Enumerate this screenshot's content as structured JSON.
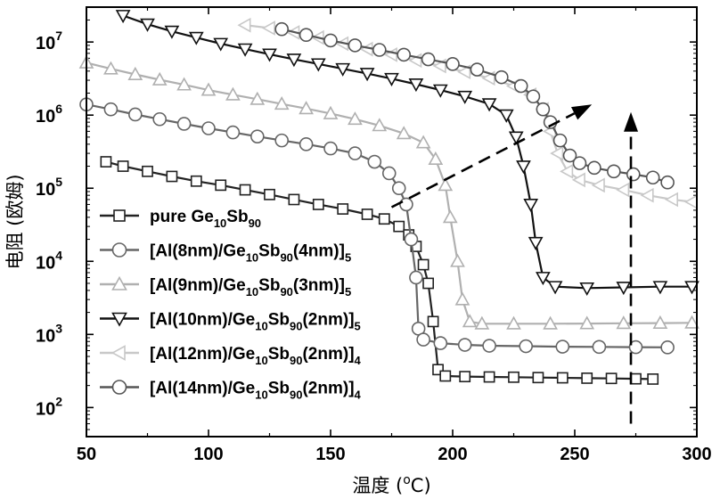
{
  "chart_data": {
    "type": "scatter",
    "xlabel": "温度 (oC)",
    "ylabel": "电阻 (欧姆)",
    "x_ticks": [
      50,
      100,
      150,
      200,
      250,
      300
    ],
    "xlim": [
      50,
      300
    ],
    "y_scale": "log",
    "ylim": [
      40,
      30000000
    ],
    "y_ticks": [
      {
        "value": 100,
        "base": "10",
        "exp": "2"
      },
      {
        "value": 1000,
        "base": "10",
        "exp": "3"
      },
      {
        "value": 10000,
        "base": "10",
        "exp": "4"
      },
      {
        "value": 100000,
        "base": "10",
        "exp": "5"
      },
      {
        "value": 1000000,
        "base": "10",
        "exp": "6"
      },
      {
        "value": 10000000,
        "base": "10",
        "exp": "7"
      }
    ],
    "legend_position": "bottom-left",
    "series": [
      {
        "label_parts": [
          [
            "pure Ge",
            ""
          ],
          [
            "10",
            "sub"
          ],
          [
            "Sb",
            ""
          ],
          [
            "90",
            "sub"
          ]
        ],
        "marker": "square",
        "color": "#222222",
        "open": true,
        "points": [
          [
            58,
            230000
          ],
          [
            65,
            200000
          ],
          [
            75,
            170000
          ],
          [
            85,
            145000
          ],
          [
            95,
            125000
          ],
          [
            105,
            110000
          ],
          [
            115,
            95000
          ],
          [
            125,
            82000
          ],
          [
            135,
            70000
          ],
          [
            145,
            60000
          ],
          [
            155,
            52000
          ],
          [
            165,
            44000
          ],
          [
            172,
            38000
          ],
          [
            178,
            30000
          ],
          [
            182,
            23000
          ],
          [
            185,
            16000
          ],
          [
            188,
            9000
          ],
          [
            190,
            5000
          ],
          [
            192,
            1500
          ],
          [
            194,
            330
          ],
          [
            197,
            270
          ],
          [
            205,
            265
          ],
          [
            215,
            262
          ],
          [
            225,
            260
          ],
          [
            235,
            257
          ],
          [
            245,
            255
          ],
          [
            255,
            252
          ],
          [
            265,
            250
          ],
          [
            275,
            247
          ],
          [
            282,
            245
          ]
        ]
      },
      {
        "label_parts": [
          [
            "[Al(8nm)/Ge",
            ""
          ],
          [
            "10",
            "sub"
          ],
          [
            "Sb",
            ""
          ],
          [
            "90",
            "sub"
          ],
          [
            "(4nm)]",
            ""
          ],
          [
            "5",
            "sub"
          ]
        ],
        "marker": "circle",
        "color": "#666666",
        "open": true,
        "points": [
          [
            50,
            1400000
          ],
          [
            60,
            1200000
          ],
          [
            70,
            1020000
          ],
          [
            80,
            880000
          ],
          [
            90,
            760000
          ],
          [
            100,
            660000
          ],
          [
            110,
            580000
          ],
          [
            120,
            510000
          ],
          [
            130,
            450000
          ],
          [
            140,
            400000
          ],
          [
            150,
            350000
          ],
          [
            160,
            300000
          ],
          [
            168,
            230000
          ],
          [
            174,
            160000
          ],
          [
            178,
            100000
          ],
          [
            181,
            60000
          ],
          [
            183,
            20000
          ],
          [
            185,
            6000
          ],
          [
            186,
            1200
          ],
          [
            188,
            850
          ],
          [
            195,
            760
          ],
          [
            205,
            720
          ],
          [
            215,
            700
          ],
          [
            230,
            690
          ],
          [
            245,
            680
          ],
          [
            260,
            675
          ],
          [
            275,
            670
          ],
          [
            288,
            665
          ]
        ]
      },
      {
        "label_parts": [
          [
            "[Al(9nm)/Ge",
            ""
          ],
          [
            "10",
            "sub"
          ],
          [
            "Sb",
            ""
          ],
          [
            "90",
            "sub"
          ],
          [
            "(3nm)]",
            ""
          ],
          [
            "5",
            "sub"
          ]
        ],
        "marker": "triangle-up",
        "color": "#b0b0b0",
        "open": true,
        "points": [
          [
            50,
            5200000
          ],
          [
            60,
            4300000
          ],
          [
            70,
            3600000
          ],
          [
            80,
            3050000
          ],
          [
            90,
            2600000
          ],
          [
            100,
            2200000
          ],
          [
            110,
            1900000
          ],
          [
            120,
            1650000
          ],
          [
            130,
            1420000
          ],
          [
            140,
            1230000
          ],
          [
            150,
            1050000
          ],
          [
            160,
            880000
          ],
          [
            170,
            720000
          ],
          [
            180,
            560000
          ],
          [
            188,
            420000
          ],
          [
            193,
            250000
          ],
          [
            197,
            110000
          ],
          [
            199,
            40000
          ],
          [
            202,
            10000
          ],
          [
            204,
            3000
          ],
          [
            207,
            1500
          ],
          [
            212,
            1400
          ],
          [
            225,
            1400
          ],
          [
            240,
            1400
          ],
          [
            255,
            1410
          ],
          [
            270,
            1420
          ],
          [
            285,
            1430
          ],
          [
            298,
            1440
          ]
        ]
      },
      {
        "label_parts": [
          [
            "[Al(10nm)/Ge",
            ""
          ],
          [
            "10",
            "sub"
          ],
          [
            "Sb",
            ""
          ],
          [
            "90",
            "sub"
          ],
          [
            "(2nm)]",
            ""
          ],
          [
            "5",
            "sub"
          ]
        ],
        "marker": "triangle-down",
        "color": "#111111",
        "open": true,
        "points": [
          [
            65,
            23000000
          ],
          [
            75,
            17500000
          ],
          [
            85,
            14000000
          ],
          [
            95,
            11500000
          ],
          [
            105,
            9500000
          ],
          [
            115,
            8000000
          ],
          [
            125,
            6800000
          ],
          [
            135,
            5800000
          ],
          [
            145,
            5000000
          ],
          [
            155,
            4300000
          ],
          [
            165,
            3700000
          ],
          [
            175,
            3150000
          ],
          [
            185,
            2650000
          ],
          [
            195,
            2200000
          ],
          [
            205,
            1800000
          ],
          [
            215,
            1420000
          ],
          [
            222,
            1000000
          ],
          [
            226,
            500000
          ],
          [
            229,
            200000
          ],
          [
            232,
            60000
          ],
          [
            234,
            18000
          ],
          [
            237,
            6000
          ],
          [
            242,
            4500
          ],
          [
            255,
            4300
          ],
          [
            270,
            4400
          ],
          [
            285,
            4500
          ],
          [
            298,
            4500
          ]
        ]
      },
      {
        "label_parts": [
          [
            "[Al(12nm)/Ge",
            ""
          ],
          [
            "10",
            "sub"
          ],
          [
            "Sb",
            ""
          ],
          [
            "90",
            "sub"
          ],
          [
            "(2nm)]",
            ""
          ],
          [
            "4",
            "sub"
          ]
        ],
        "marker": "triangle-left",
        "color": "#c8c8c8",
        "open": true,
        "points": [
          [
            115,
            17000000
          ],
          [
            125,
            15500000
          ],
          [
            135,
            13500000
          ],
          [
            145,
            11500000
          ],
          [
            155,
            9500000
          ],
          [
            165,
            8000000
          ],
          [
            175,
            6700000
          ],
          [
            185,
            5600000
          ],
          [
            195,
            4700000
          ],
          [
            205,
            3900000
          ],
          [
            215,
            3200000
          ],
          [
            225,
            2500000
          ],
          [
            232,
            1900000
          ],
          [
            237,
            1200000
          ],
          [
            240,
            600000
          ],
          [
            243,
            300000
          ],
          [
            247,
            170000
          ],
          [
            252,
            130000
          ],
          [
            260,
            110000
          ],
          [
            270,
            95000
          ],
          [
            280,
            80000
          ],
          [
            290,
            70000
          ],
          [
            298,
            65000
          ]
        ]
      },
      {
        "label_parts": [
          [
            "[Al(14nm)/Ge",
            ""
          ],
          [
            "10",
            "sub"
          ],
          [
            "Sb",
            ""
          ],
          [
            "90",
            "sub"
          ],
          [
            "(2nm)]",
            ""
          ],
          [
            "4",
            "sub"
          ]
        ],
        "marker": "circle",
        "color": "#555555",
        "open": true,
        "points": [
          [
            130,
            15000000
          ],
          [
            140,
            12500000
          ],
          [
            150,
            10500000
          ],
          [
            160,
            9000000
          ],
          [
            170,
            7800000
          ],
          [
            180,
            6700000
          ],
          [
            190,
            5800000
          ],
          [
            200,
            5000000
          ],
          [
            210,
            4200000
          ],
          [
            220,
            3300000
          ],
          [
            228,
            2500000
          ],
          [
            233,
            1800000
          ],
          [
            237,
            1200000
          ],
          [
            240,
            800000
          ],
          [
            244,
            450000
          ],
          [
            248,
            280000
          ],
          [
            252,
            220000
          ],
          [
            258,
            190000
          ],
          [
            266,
            170000
          ],
          [
            274,
            155000
          ],
          [
            282,
            140000
          ],
          [
            288,
            120000
          ]
        ]
      }
    ],
    "arrows": [
      {
        "from": [
          175,
          55000
        ],
        "to": [
          257,
          1400000
        ],
        "style": "dashed"
      },
      {
        "from": [
          273,
          60
        ],
        "to": [
          273,
          1100000
        ],
        "style": "dashed"
      }
    ]
  }
}
